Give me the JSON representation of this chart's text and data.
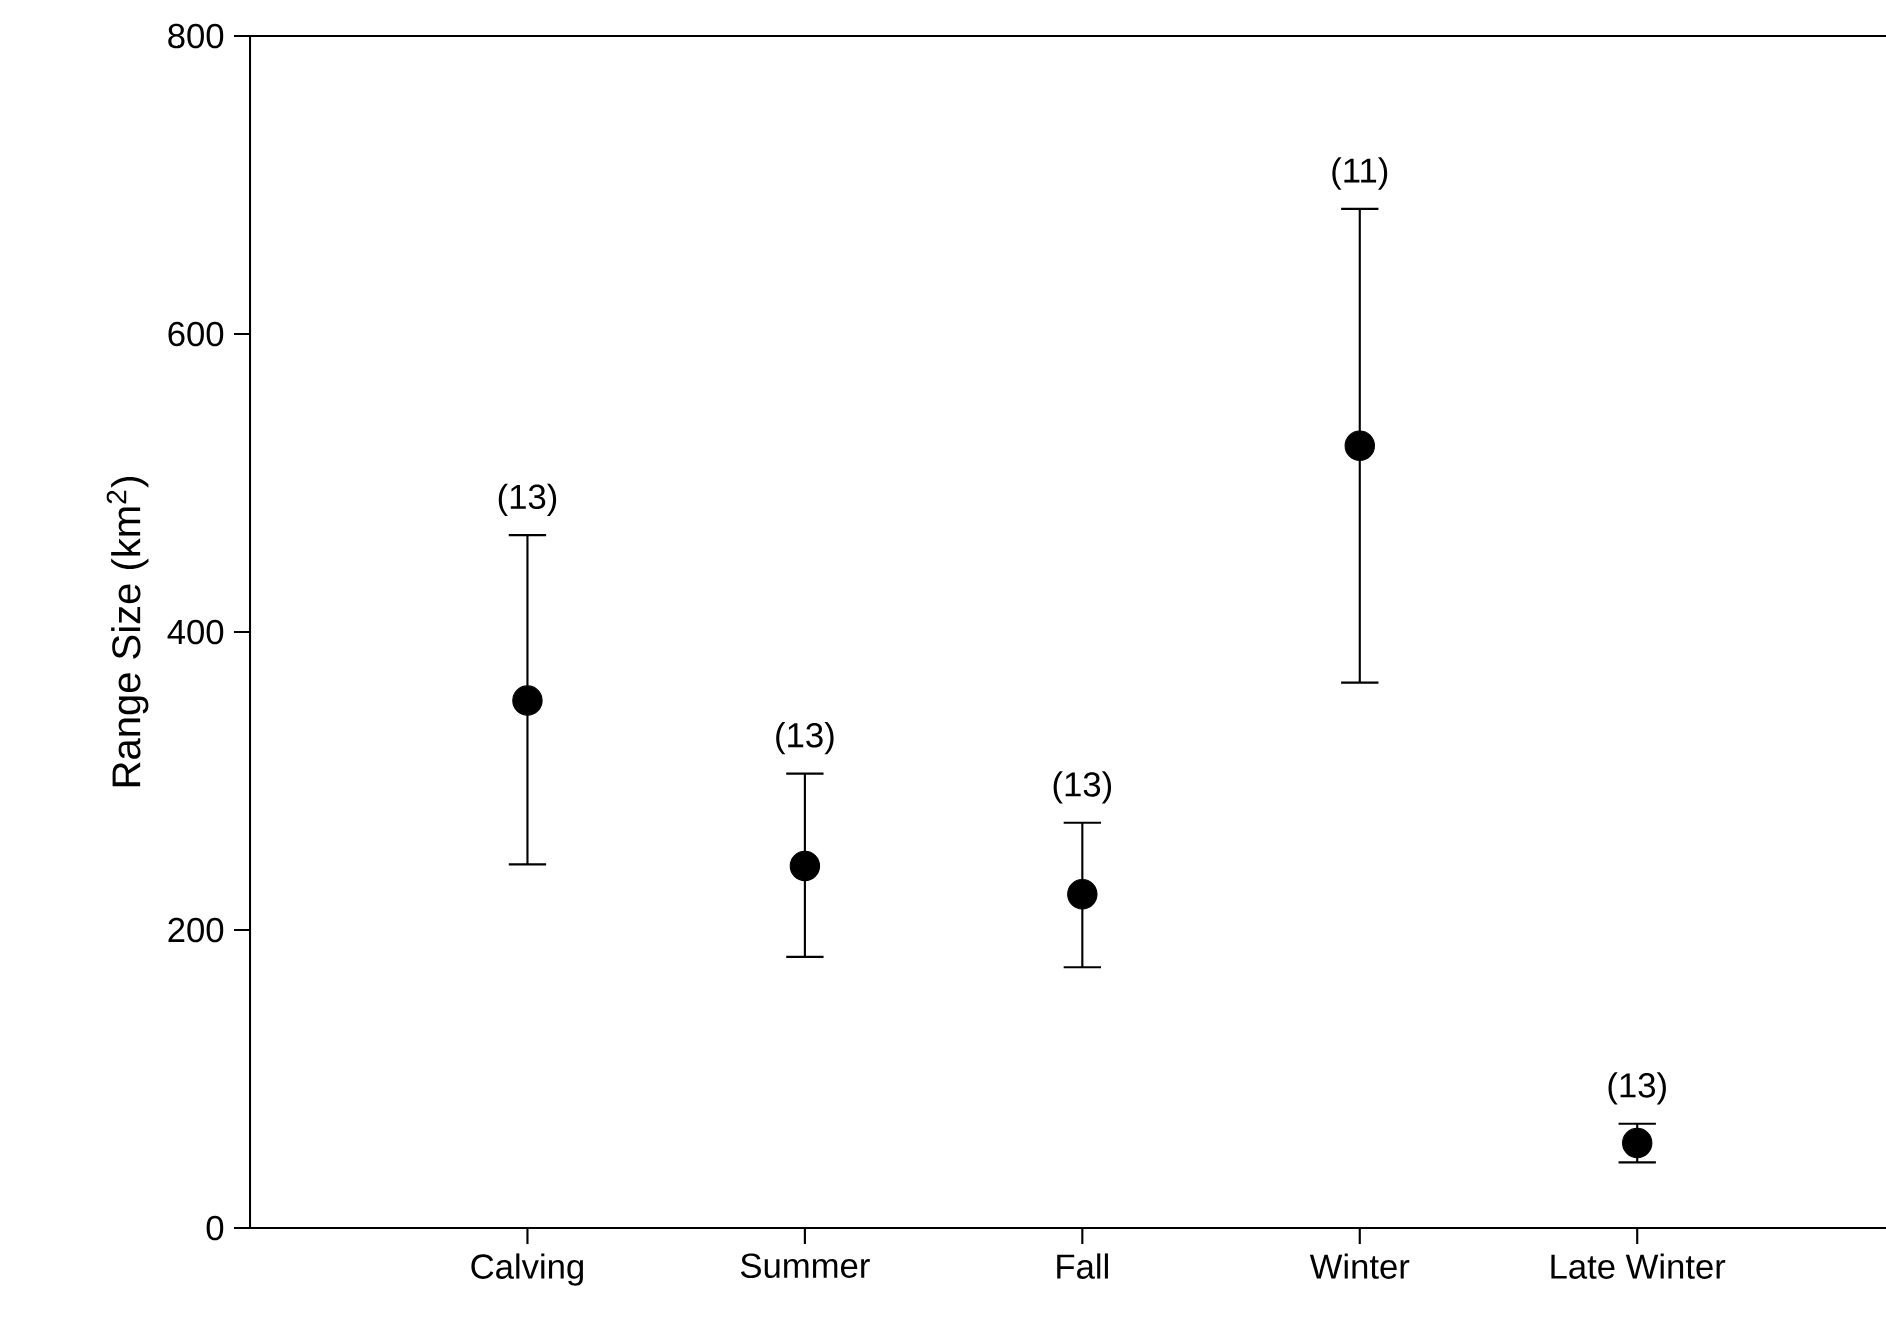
{
  "chart_data": {
    "type": "scatter",
    "ylabel": "Range Size (km$^{2}$)",
    "categories": [
      "Calving",
      "Summer",
      "Fall",
      "Winter",
      "Late Winter"
    ],
    "values": [
      354,
      243,
      224,
      525,
      57
    ],
    "errors": [
      [
        244,
        465
      ],
      [
        182,
        305
      ],
      [
        175,
        272
      ],
      [
        366,
        684
      ],
      [
        44,
        70
      ]
    ],
    "color": "#000000",
    "marker": "circle",
    "ylim": [
      0,
      800
    ],
    "yticks": [
      0,
      200,
      400,
      600,
      800
    ],
    "annotations": [
      {
        "text": "(13)",
        "x": "Calving",
        "y": 465
      },
      {
        "text": "(13)",
        "x": "Summer",
        "y": 305
      },
      {
        "text": "(13)",
        "x": "Fall",
        "y": 272
      },
      {
        "text": "(11)",
        "x": "Winter",
        "y": 684
      },
      {
        "text": "(13)",
        "x": "Late Winter",
        "y": 70
      }
    ]
  }
}
